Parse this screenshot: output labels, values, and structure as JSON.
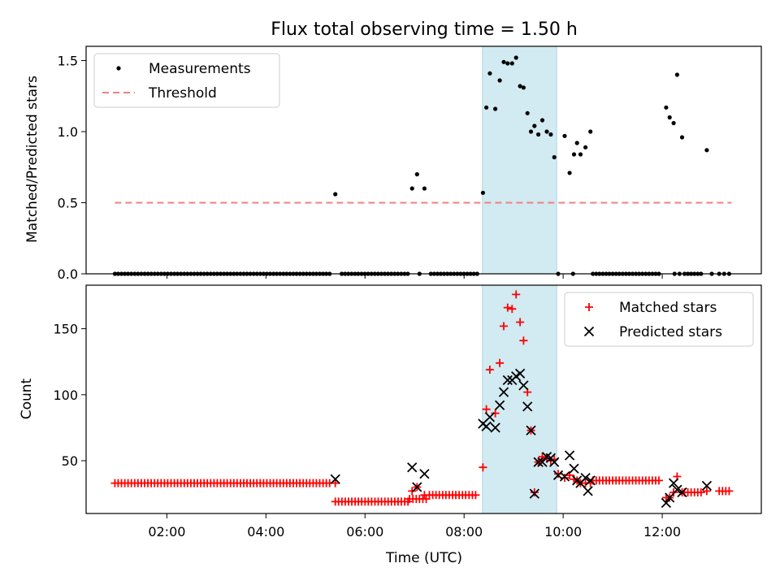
{
  "chart_data": [
    {
      "type": "scatter",
      "title": "Flux total observing time = 1.50 h",
      "xlabel": "",
      "ylabel": "Matched/Predicted stars",
      "ylim": [
        0,
        1.6
      ],
      "xlim_hours": [
        0.37,
        14.0
      ],
      "yticks": [
        0.0,
        0.5,
        1.0,
        1.5
      ],
      "ytick_labels": [
        "0.0",
        "0.5",
        "1.0",
        "1.5"
      ],
      "legend": "top-left",
      "highlight_window_hours": [
        8.37,
        9.87
      ],
      "highlight_color": "#add8e6",
      "series": [
        {
          "name": "Measurements",
          "marker": "dot",
          "color": "#000000",
          "zero_runs": [
            [
              0.95,
              5.33,
              0.0667
            ],
            [
              5.53,
              6.87,
              0.0667
            ],
            [
              7.33,
              8.3,
              0.0667
            ],
            [
              10.6,
              12.0,
              0.0667
            ],
            [
              12.45,
              12.83,
              0.0667
            ],
            [
              13.15,
              13.4,
              0.1
            ]
          ],
          "points": [
            [
              5.4,
              0.56
            ],
            [
              6.95,
              0.6
            ],
            [
              7.05,
              0.7
            ],
            [
              7.2,
              0.6
            ],
            [
              7.1,
              0.0
            ],
            [
              8.38,
              0.57
            ],
            [
              8.45,
              1.17
            ],
            [
              8.52,
              1.41
            ],
            [
              8.63,
              1.16
            ],
            [
              8.72,
              1.36
            ],
            [
              8.8,
              1.49
            ],
            [
              8.88,
              1.48
            ],
            [
              8.97,
              1.48
            ],
            [
              9.05,
              1.52
            ],
            [
              9.13,
              1.32
            ],
            [
              9.2,
              1.31
            ],
            [
              9.28,
              1.13
            ],
            [
              9.35,
              1.0
            ],
            [
              9.42,
              1.04
            ],
            [
              9.5,
              0.98
            ],
            [
              9.58,
              1.08
            ],
            [
              9.67,
              1.0
            ],
            [
              9.75,
              0.98
            ],
            [
              9.82,
              0.82
            ],
            [
              9.9,
              0.0
            ],
            [
              10.03,
              0.97
            ],
            [
              10.13,
              0.71
            ],
            [
              10.22,
              0.84
            ],
            [
              10.28,
              0.92
            ],
            [
              10.35,
              0.84
            ],
            [
              10.45,
              0.89
            ],
            [
              10.55,
              1.0
            ],
            [
              10.2,
              0.0
            ],
            [
              12.08,
              1.17
            ],
            [
              12.15,
              1.1
            ],
            [
              12.23,
              1.06
            ],
            [
              12.3,
              1.4
            ],
            [
              12.4,
              0.96
            ],
            [
              12.9,
              0.87
            ],
            [
              12.25,
              0.0
            ],
            [
              12.35,
              0.0
            ],
            [
              13.0,
              0.0
            ]
          ]
        },
        {
          "name": "Threshold",
          "style": "dashed",
          "color": "#f08080",
          "x": [
            0.95,
            13.4
          ],
          "y": [
            0.5,
            0.5
          ]
        }
      ]
    },
    {
      "type": "scatter",
      "title": "",
      "xlabel": "Time (UTC)",
      "ylabel": "Count",
      "ylim": [
        10,
        183
      ],
      "xlim_hours": [
        0.37,
        14.0
      ],
      "yticks": [
        50,
        100,
        150
      ],
      "ytick_labels": [
        "50",
        "100",
        "150"
      ],
      "xticks_hours": [
        2,
        4,
        6,
        8,
        10,
        12
      ],
      "xtick_labels": [
        "02:00",
        "04:00",
        "06:00",
        "08:00",
        "10:00",
        "12:00"
      ],
      "legend": "top-right",
      "highlight_window_hours": [
        8.37,
        9.87
      ],
      "highlight_color": "#add8e6",
      "series": [
        {
          "name": "Matched stars",
          "marker": "plus",
          "color": "#ff0000",
          "runs": [
            [
              0.95,
              5.33,
              0.0667,
              33
            ],
            [
              5.4,
              6.87,
              0.0667,
              19
            ],
            [
              6.9,
              7.3,
              0.0667,
              21
            ],
            [
              7.3,
              8.3,
              0.0667,
              24
            ],
            [
              10.6,
              12.0,
              0.0667,
              35
            ],
            [
              12.45,
              12.85,
              0.0667,
              26
            ],
            [
              13.15,
              13.4,
              0.0667,
              27
            ]
          ],
          "points": [
            [
              5.4,
              33
            ],
            [
              6.95,
              27
            ],
            [
              7.05,
              30
            ],
            [
              7.2,
              24
            ],
            [
              8.38,
              45
            ],
            [
              8.45,
              89
            ],
            [
              8.52,
              119
            ],
            [
              8.63,
              86
            ],
            [
              8.72,
              124
            ],
            [
              8.8,
              152
            ],
            [
              8.88,
              166
            ],
            [
              8.97,
              165
            ],
            [
              9.05,
              176
            ],
            [
              9.13,
              155
            ],
            [
              9.2,
              141
            ],
            [
              9.28,
              102
            ],
            [
              9.35,
              73
            ],
            [
              9.42,
              26
            ],
            [
              9.5,
              49
            ],
            [
              9.58,
              53
            ],
            [
              9.67,
              52
            ],
            [
              9.75,
              50
            ],
            [
              9.82,
              51
            ],
            [
              9.9,
              40
            ],
            [
              10.03,
              37
            ],
            [
              10.13,
              39
            ],
            [
              10.22,
              36
            ],
            [
              10.28,
              35
            ],
            [
              10.35,
              33
            ],
            [
              10.45,
              33
            ],
            [
              10.55,
              33
            ],
            [
              12.08,
              22
            ],
            [
              12.15,
              22
            ],
            [
              12.23,
              26
            ],
            [
              12.3,
              38
            ],
            [
              12.4,
              26
            ],
            [
              12.9,
              27
            ]
          ]
        },
        {
          "name": "Predicted stars",
          "marker": "x",
          "color": "#000000",
          "points": [
            [
              5.4,
              36
            ],
            [
              6.95,
              45
            ],
            [
              7.05,
              30
            ],
            [
              7.2,
              40
            ],
            [
              8.38,
              78
            ],
            [
              8.45,
              76
            ],
            [
              8.52,
              83
            ],
            [
              8.63,
              75
            ],
            [
              8.72,
              92
            ],
            [
              8.8,
              102
            ],
            [
              8.88,
              111
            ],
            [
              8.97,
              111
            ],
            [
              9.05,
              114
            ],
            [
              9.13,
              116
            ],
            [
              9.2,
              107
            ],
            [
              9.28,
              91
            ],
            [
              9.35,
              73
            ],
            [
              9.42,
              25
            ],
            [
              9.5,
              49
            ],
            [
              9.58,
              49
            ],
            [
              9.67,
              53
            ],
            [
              9.75,
              52
            ],
            [
              9.82,
              49
            ],
            [
              9.9,
              39
            ],
            [
              10.03,
              38
            ],
            [
              10.13,
              54
            ],
            [
              10.22,
              44
            ],
            [
              10.28,
              35
            ],
            [
              10.35,
              33
            ],
            [
              10.45,
              37
            ],
            [
              10.5,
              27
            ],
            [
              10.55,
              35
            ],
            [
              12.08,
              18
            ],
            [
              12.15,
              22
            ],
            [
              12.23,
              33
            ],
            [
              12.3,
              28
            ],
            [
              12.4,
              26
            ],
            [
              12.9,
              31
            ]
          ]
        }
      ]
    }
  ]
}
